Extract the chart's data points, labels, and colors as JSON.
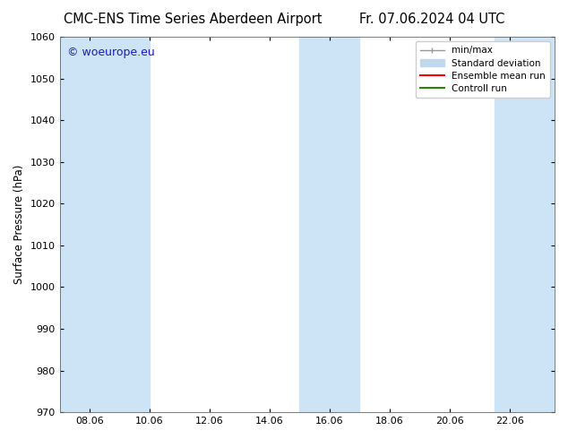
{
  "title_left": "CMC-ENS Time Series Aberdeen Airport",
  "title_right": "Fr. 07.06.2024 04 UTC",
  "ylabel": "Surface Pressure (hPa)",
  "ylim": [
    970,
    1060
  ],
  "yticks": [
    970,
    980,
    990,
    1000,
    1010,
    1020,
    1030,
    1040,
    1050,
    1060
  ],
  "xtick_labels": [
    "08.06",
    "10.06",
    "12.06",
    "14.06",
    "16.06",
    "18.06",
    "20.06",
    "22.06"
  ],
  "xtick_positions": [
    1,
    3,
    5,
    7,
    9,
    11,
    13,
    15
  ],
  "xlim": [
    0,
    16.5
  ],
  "watermark": "© woeurope.eu",
  "watermark_color": "#1a1acc",
  "shaded_bands": [
    {
      "x_start": 0.0,
      "x_end": 2.0
    },
    {
      "x_start": 2.0,
      "x_end": 3.0
    },
    {
      "x_start": 8.0,
      "x_end": 10.0
    },
    {
      "x_start": 14.5,
      "x_end": 16.5
    }
  ],
  "band_color": "#cce4f5",
  "legend_items": [
    {
      "label": "min/max",
      "color": "#999999"
    },
    {
      "label": "Standard deviation",
      "color": "#c0d8ee"
    },
    {
      "label": "Ensemble mean run",
      "color": "#ff0000"
    },
    {
      "label": "Controll run",
      "color": "#228800"
    }
  ],
  "bg_color": "#ffffff",
  "title_fontsize": 10.5,
  "axis_label_fontsize": 8.5,
  "tick_fontsize": 8,
  "legend_fontsize": 7.5,
  "watermark_fontsize": 9
}
